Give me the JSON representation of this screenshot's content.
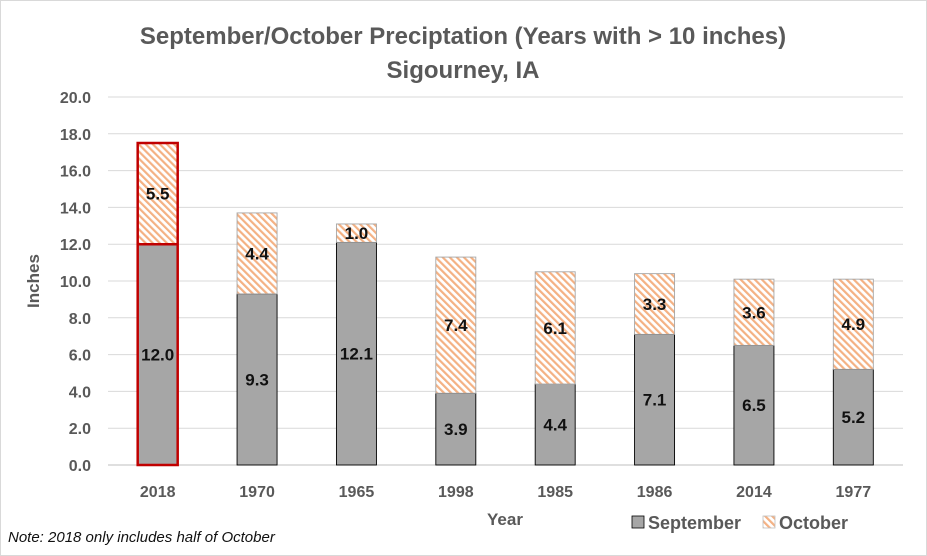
{
  "chart_data": {
    "type": "bar",
    "stacked": true,
    "title": "September/October Preciptation (Years with > 10 inches)",
    "subtitle": "Sigourney, IA",
    "xlabel": "Year",
    "ylabel": "Inches",
    "categories": [
      "2018",
      "1970",
      "1965",
      "1998",
      "1985",
      "1986",
      "2014",
      "1977"
    ],
    "series": [
      {
        "name": "September",
        "color": "#a6a6a6",
        "values": [
          12.0,
          9.3,
          12.1,
          3.9,
          4.4,
          7.1,
          6.5,
          5.2
        ],
        "labels": [
          "12.0",
          "9.3",
          "12.1",
          "3.9",
          "4.4",
          "7.1",
          "6.5",
          "5.2"
        ]
      },
      {
        "name": "October",
        "color": "#f4b183",
        "pattern": "diagonal-hatch",
        "values": [
          5.5,
          4.4,
          1.0,
          7.4,
          6.1,
          3.3,
          3.6,
          4.9
        ],
        "labels": [
          "5.5",
          "4.4",
          "1.0",
          "7.4",
          "6.1",
          "3.3",
          "3.6",
          "4.9"
        ]
      }
    ],
    "ylim": [
      0,
      20
    ],
    "yticks": [
      "0.0",
      "2.0",
      "4.0",
      "6.0",
      "8.0",
      "10.0",
      "12.0",
      "14.0",
      "16.0",
      "18.0",
      "20.0"
    ],
    "grid": true,
    "legend_position": "bottom-right",
    "highlight": {
      "category": "2018",
      "outline_color": "#c00000"
    },
    "note": "Note: 2018 only includes half of October"
  }
}
